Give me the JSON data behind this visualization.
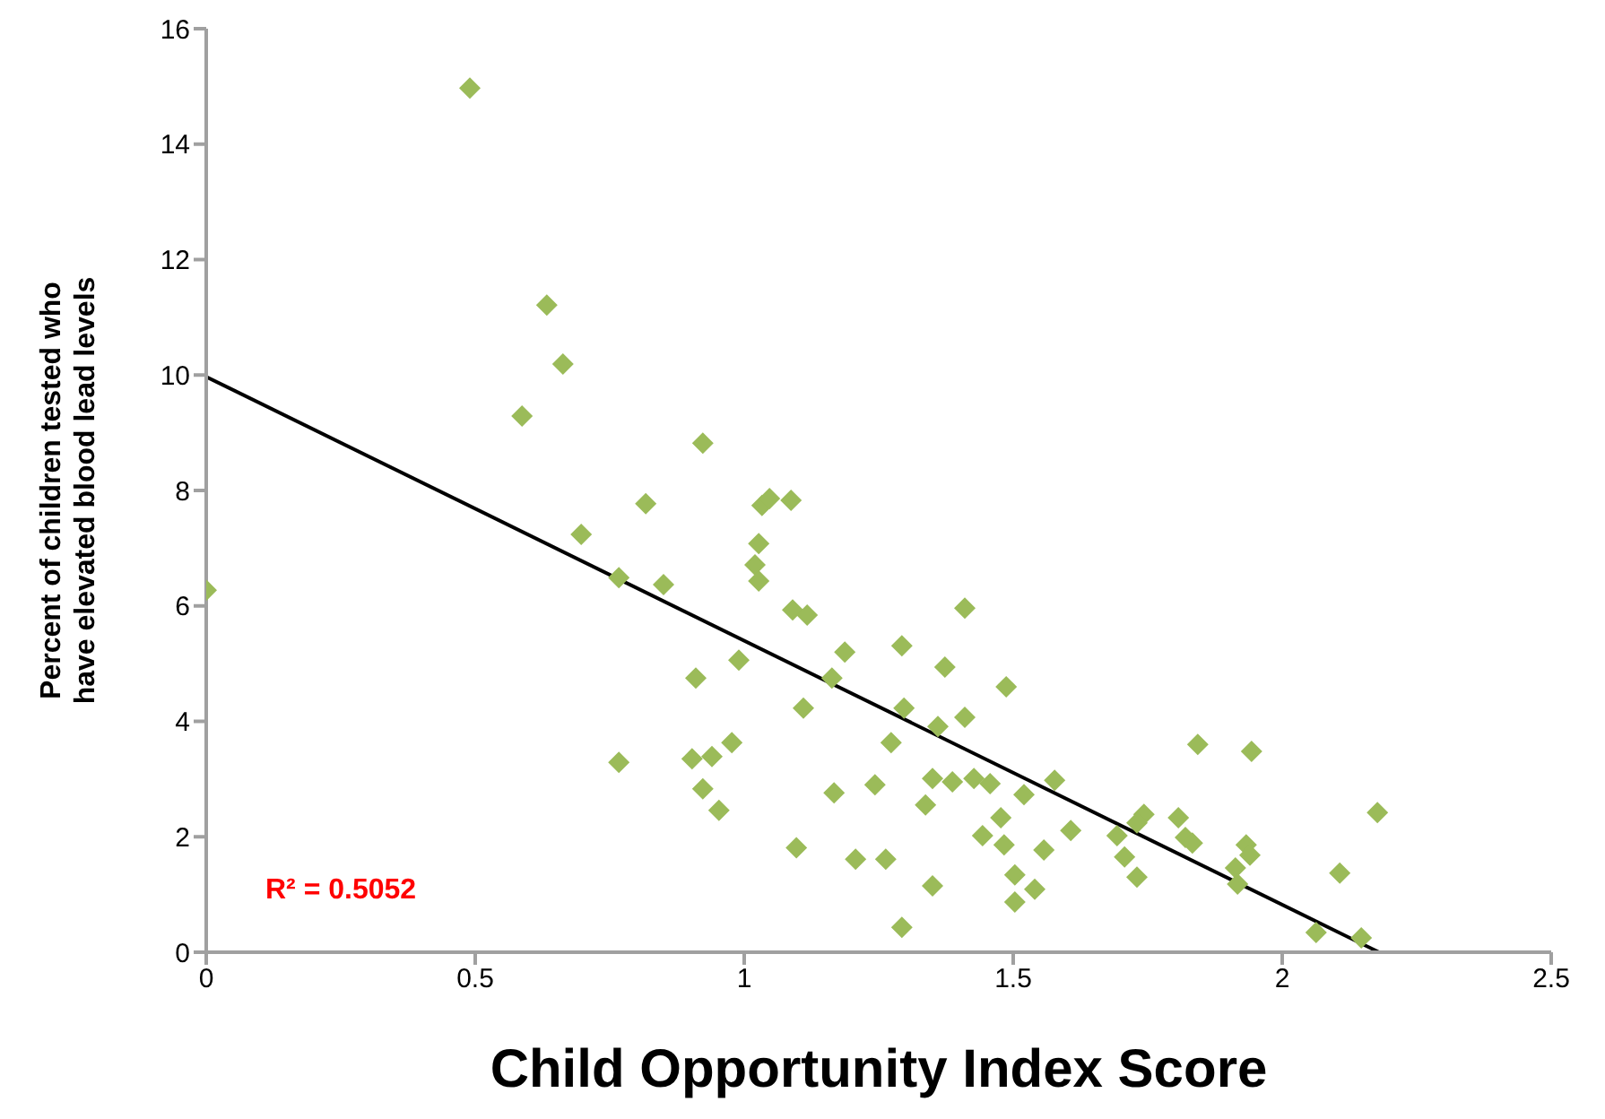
{
  "chart_data": {
    "type": "scatter",
    "xlabel": "Child Opportunity Index Score",
    "ylabel": "Percent of children tested who have elevated blood lead levels",
    "xlim": [
      0,
      2.5
    ],
    "xticks": [
      0,
      0.5,
      1,
      1.5,
      2,
      2.5
    ],
    "ylim": [
      0,
      16
    ],
    "yticks": [
      0,
      2,
      4,
      6,
      8,
      10,
      12,
      14,
      16
    ],
    "grid": false,
    "legend": false,
    "annotations": [
      "R² = 0.5052"
    ],
    "series": [
      {
        "marker": "diamond",
        "color": "#9bbb59",
        "x": [
          0,
          0.49,
          0.633,
          0.663,
          0.587,
          0.697,
          0.767,
          0.817,
          0.85,
          0.767,
          0.923,
          0.91,
          0.903,
          0.923,
          0.94,
          0.953,
          0.977,
          0.99,
          1.02,
          1.027,
          1.027,
          1.033,
          1.047,
          1.087,
          1.09,
          1.117,
          1.11,
          1.097,
          1.163,
          1.187,
          1.167,
          1.207,
          1.273,
          1.243,
          1.263,
          1.297,
          1.293,
          1.293,
          1.337,
          1.35,
          1.36,
          1.35,
          1.373,
          1.387,
          1.41,
          1.41,
          1.427,
          1.457,
          1.443,
          1.477,
          1.487,
          1.483,
          1.503,
          1.503,
          1.52,
          1.54,
          1.557,
          1.577,
          1.607,
          1.743,
          1.73,
          1.807,
          2.177,
          1.693,
          1.82,
          1.833,
          1.933,
          1.94,
          1.707,
          1.913,
          2.107,
          1.73,
          1.917,
          2.063,
          2.147,
          1.843,
          1.943
        ],
        "values": [
          6.27,
          14.97,
          11.21,
          10.19,
          9.29,
          7.24,
          6.49,
          7.77,
          6.37,
          3.29,
          8.82,
          4.75,
          3.35,
          2.83,
          3.39,
          2.46,
          3.63,
          5.06,
          6.71,
          6.43,
          7.08,
          7.74,
          7.86,
          7.83,
          5.93,
          5.84,
          4.23,
          1.81,
          4.75,
          5.2,
          2.76,
          1.61,
          3.63,
          2.9,
          1.61,
          4.23,
          5.31,
          0.43,
          2.55,
          3.01,
          3.91,
          1.15,
          4.94,
          2.95,
          5.96,
          4.07,
          3.01,
          2.92,
          2.02,
          2.33,
          4.6,
          1.86,
          1.34,
          0.87,
          2.73,
          1.09,
          1.77,
          2.98,
          2.11,
          2.39,
          2.24,
          2.33,
          2.42,
          2.02,
          1.99,
          1.89,
          1.86,
          1.68,
          1.65,
          1.46,
          1.37,
          1.3,
          1.18,
          0.34,
          0.25,
          3.6,
          3.48
        ]
      },
      {
        "type": "line",
        "color": "#000000",
        "line_style": "solid",
        "x": [
          0,
          2.18
        ],
        "values": [
          9.97,
          0
        ]
      }
    ]
  }
}
